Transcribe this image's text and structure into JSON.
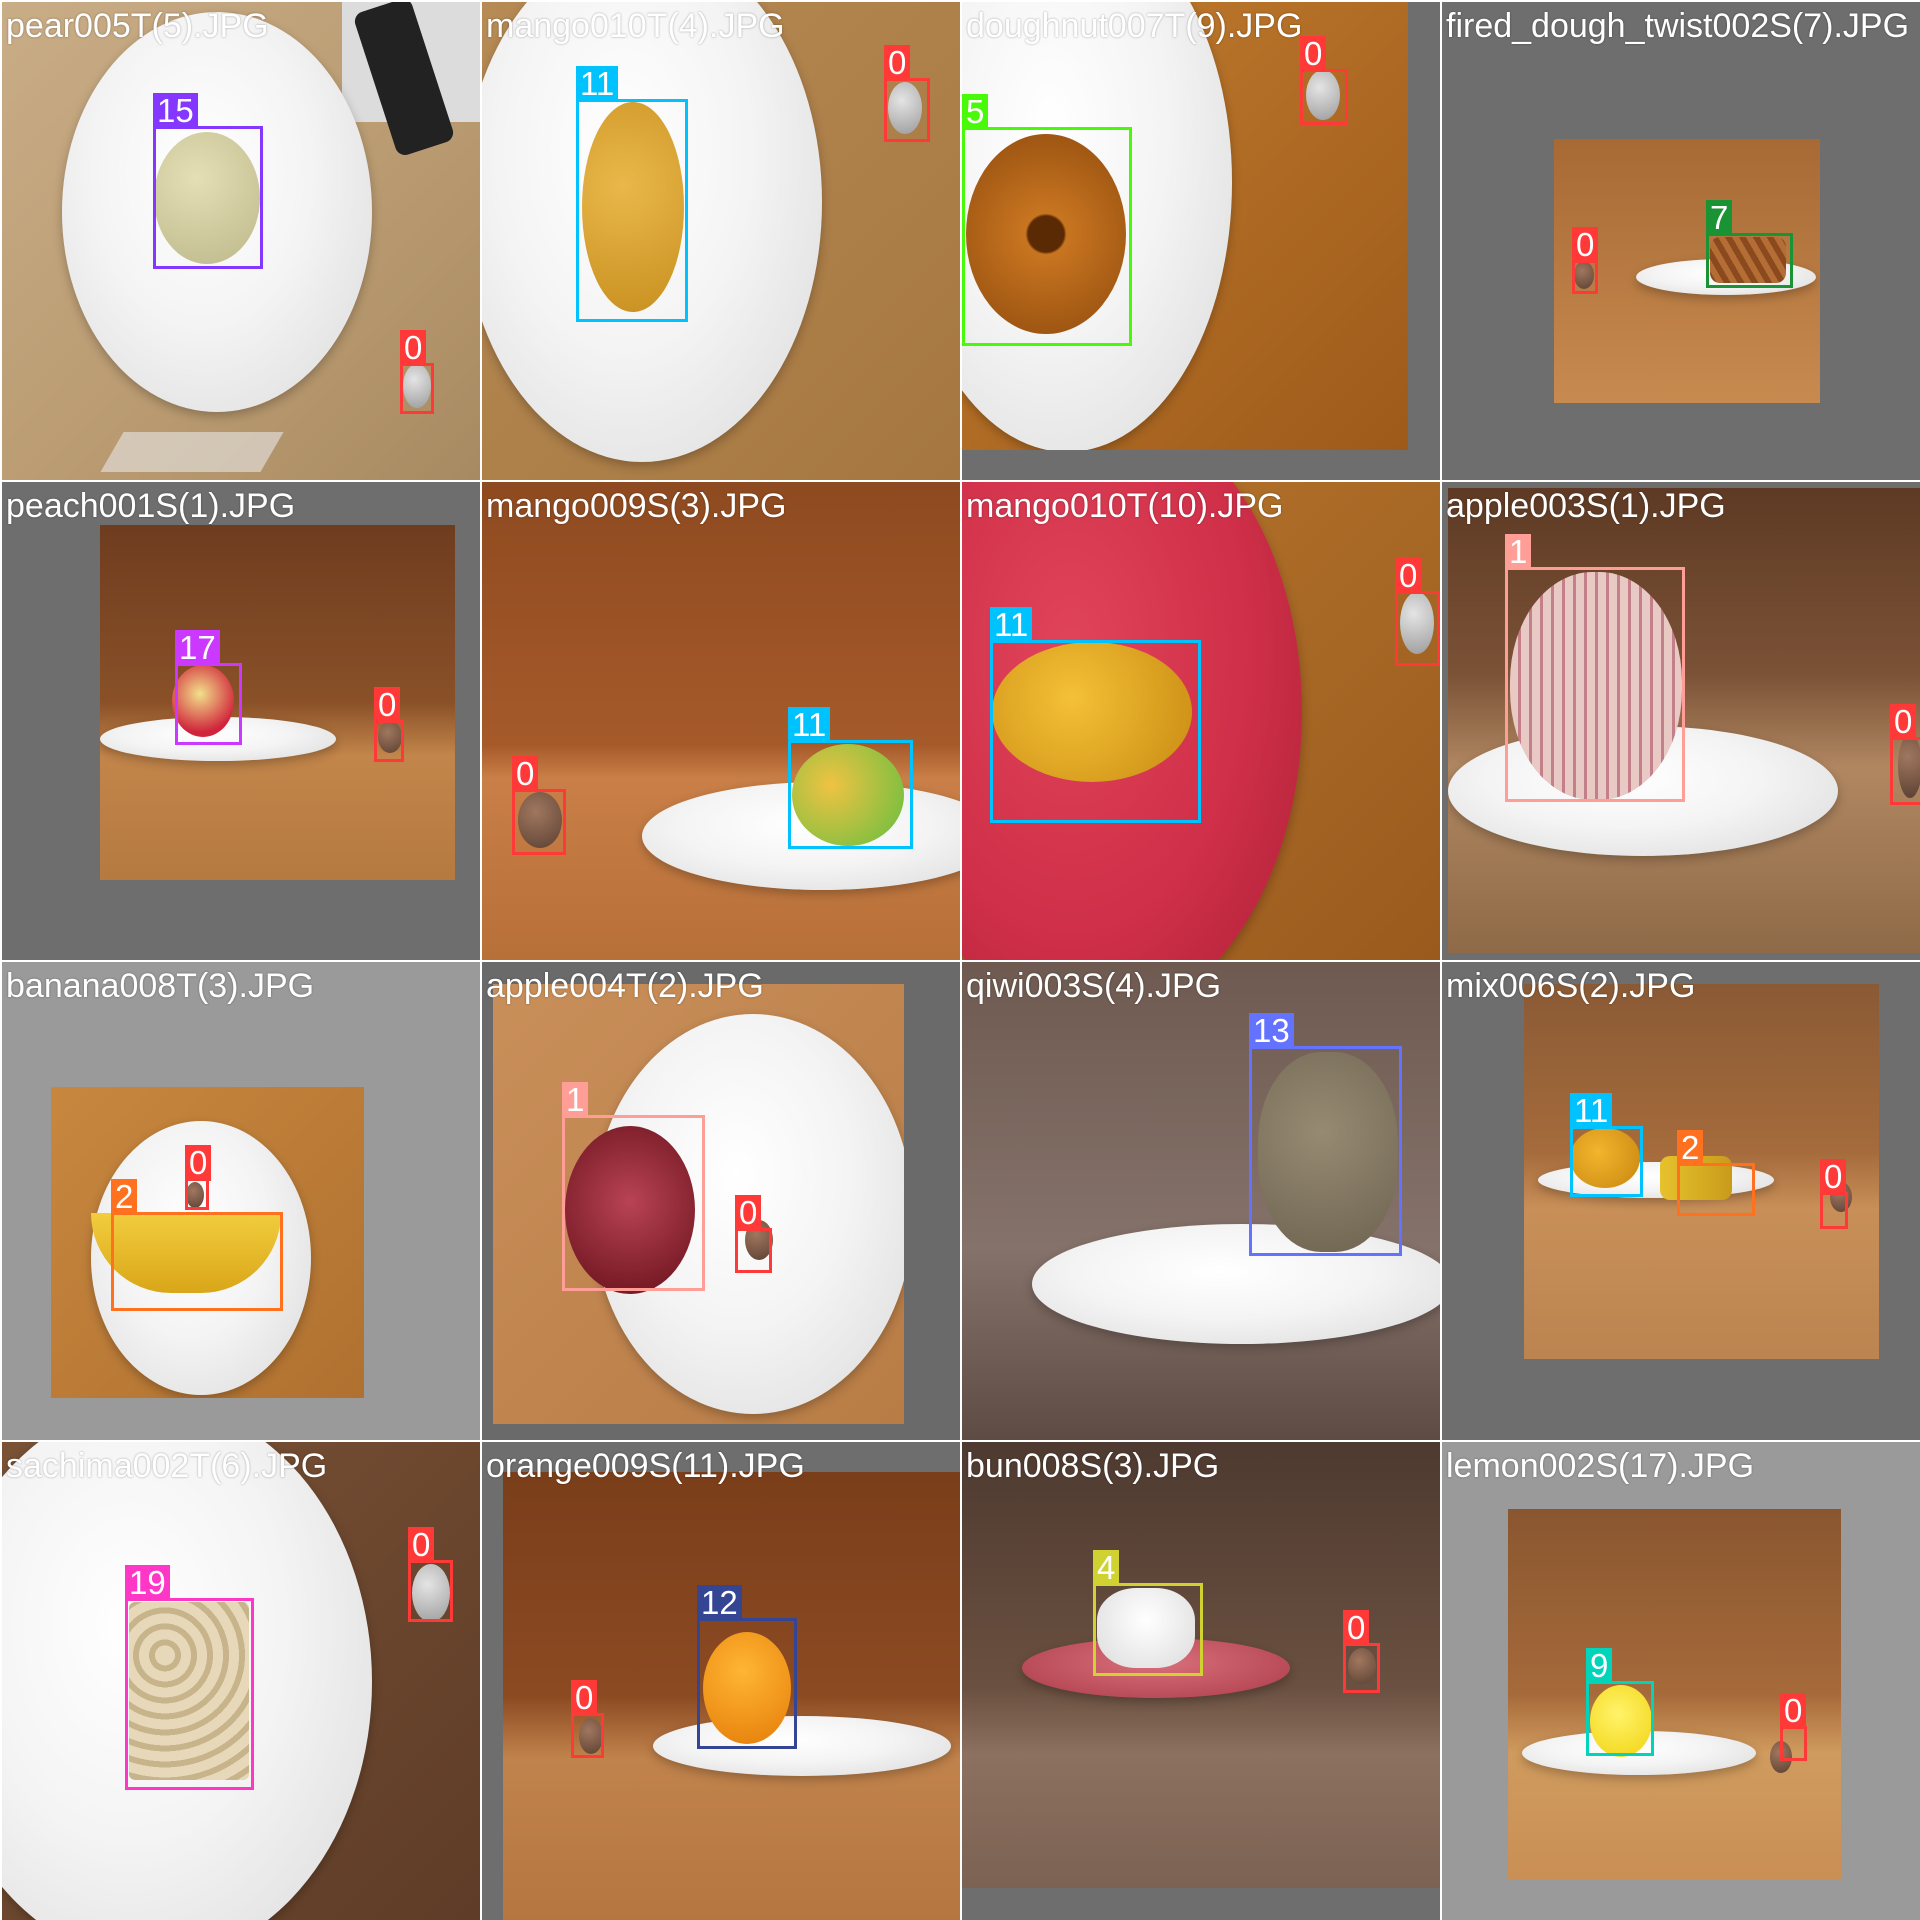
{
  "class_colors": {
    "0": "#ff3838",
    "1": "#ff9d97",
    "2": "#ff701f",
    "4": "#cfd231",
    "5": "#48f90a",
    "7": "#1a9334",
    "9": "#00d4bb",
    "11": "#00c2ff",
    "12": "#344593",
    "13": "#6473ff",
    "15": "#8438ff",
    "17": "#cb38ff",
    "19": "#ff37c7"
  },
  "tiles": [
    {
      "filename": "pear005T(5).JPG",
      "labels": [
        {
          "cls": "15",
          "text": "15"
        },
        {
          "cls": "0",
          "text": "0"
        }
      ]
    },
    {
      "filename": "mango010T(4).JPG",
      "labels": [
        {
          "cls": "11",
          "text": "11"
        },
        {
          "cls": "0",
          "text": "0"
        }
      ]
    },
    {
      "filename": "doughnut007T(9).JPG",
      "labels": [
        {
          "cls": "5",
          "text": "5"
        },
        {
          "cls": "0",
          "text": "0"
        }
      ]
    },
    {
      "filename": "fired_dough_twist002S(7).JPG",
      "labels": [
        {
          "cls": "7",
          "text": "7"
        },
        {
          "cls": "0",
          "text": "0"
        }
      ]
    },
    {
      "filename": "peach001S(1).JPG",
      "labels": [
        {
          "cls": "17",
          "text": "17"
        },
        {
          "cls": "0",
          "text": "0"
        }
      ]
    },
    {
      "filename": "mango009S(3).JPG",
      "labels": [
        {
          "cls": "11",
          "text": "11"
        },
        {
          "cls": "0",
          "text": "0"
        }
      ]
    },
    {
      "filename": "mango010T(10).JPG",
      "labels": [
        {
          "cls": "11",
          "text": "11"
        },
        {
          "cls": "0",
          "text": "0"
        }
      ]
    },
    {
      "filename": "apple003S(1).JPG",
      "labels": [
        {
          "cls": "1",
          "text": "1"
        },
        {
          "cls": "0",
          "text": "0"
        }
      ]
    },
    {
      "filename": "banana008T(3).JPG",
      "labels": [
        {
          "cls": "2",
          "text": "2"
        },
        {
          "cls": "0",
          "text": "0"
        }
      ]
    },
    {
      "filename": "apple004T(2).JPG",
      "labels": [
        {
          "cls": "1",
          "text": "1"
        },
        {
          "cls": "0",
          "text": "0"
        }
      ]
    },
    {
      "filename": "qiwi003S(4).JPG",
      "labels": [
        {
          "cls": "13",
          "text": "13"
        }
      ]
    },
    {
      "filename": "mix006S(2).JPG",
      "labels": [
        {
          "cls": "11",
          "text": "11"
        },
        {
          "cls": "2",
          "text": "2"
        },
        {
          "cls": "0",
          "text": "0"
        }
      ]
    },
    {
      "filename": "sachima002T(6).JPG",
      "labels": [
        {
          "cls": "19",
          "text": "19"
        },
        {
          "cls": "0",
          "text": "0"
        }
      ]
    },
    {
      "filename": "orange009S(11).JPG",
      "labels": [
        {
          "cls": "12",
          "text": "12"
        },
        {
          "cls": "0",
          "text": "0"
        }
      ]
    },
    {
      "filename": "bun008S(3).JPG",
      "labels": [
        {
          "cls": "4",
          "text": "4"
        },
        {
          "cls": "0",
          "text": "0"
        }
      ]
    },
    {
      "filename": "lemon002S(17).JPG",
      "labels": [
        {
          "cls": "9",
          "text": "9"
        },
        {
          "cls": "0",
          "text": "0"
        }
      ]
    }
  ]
}
